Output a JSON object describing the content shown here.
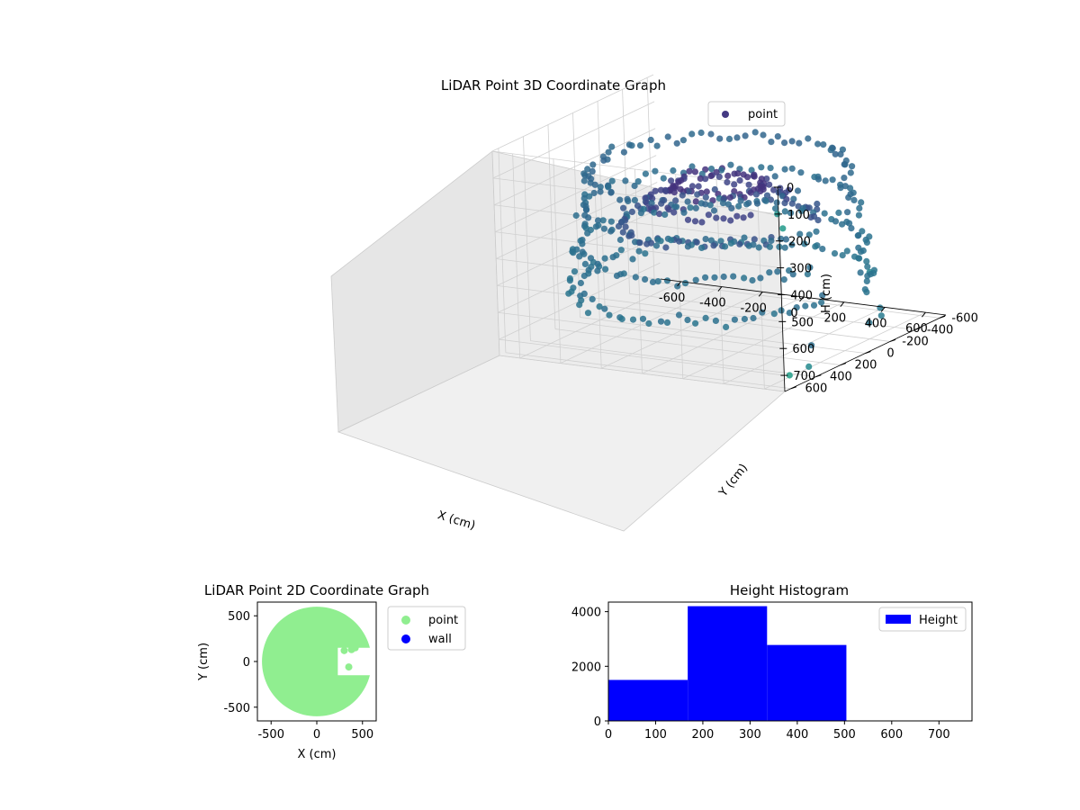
{
  "colors": {
    "point3d": "#443a83",
    "point2d": "#90ee90",
    "wall": "#0000ff",
    "hist": "#0000ff"
  },
  "chart_data": [
    {
      "type": "scatter",
      "projection": "3d",
      "title": "LiDAR Point 3D Coordinate Graph",
      "xlabel": "X (cm)",
      "ylabel": "Y (cm)",
      "zlabel": "H (cm)",
      "xlim": [
        -700,
        700
      ],
      "ylim": [
        -650,
        650
      ],
      "zlim": [
        0,
        760
      ],
      "z_inverted": true,
      "x_ticks": [
        -600,
        -400,
        -200,
        0,
        200,
        400,
        600
      ],
      "y_ticks": [
        -600,
        -400,
        -200,
        0,
        200,
        400,
        600
      ],
      "z_ticks": [
        0,
        100,
        200,
        300,
        400,
        500,
        600,
        700
      ],
      "colormap": "viridis",
      "legend": {
        "entries": [
          "point"
        ],
        "placement": "top-right"
      },
      "series": [
        {
          "name": "point",
          "description_free": true,
          "rings": [
            {
              "radius": 560,
              "h": 150,
              "count": 90
            },
            {
              "radius": 600,
              "h": 280,
              "count": 90
            },
            {
              "radius": 620,
              "h": 420,
              "count": 95
            },
            {
              "radius": 640,
              "h": 560,
              "count": 95
            },
            {
              "radius": 420,
              "h": 330,
              "count": 70
            },
            {
              "radius": 300,
              "h": 250,
              "count": 60
            },
            {
              "radius": 200,
              "h": 200,
              "count": 50
            }
          ],
          "outliers": [
            [
              650,
              580,
              120
            ],
            [
              700,
              620,
              160
            ],
            [
              720,
              640,
              700
            ],
            [
              680,
              420,
              720
            ],
            [
              560,
              200,
              700
            ],
            [
              600,
              -200,
              700
            ],
            [
              520,
              -420,
              700
            ],
            [
              500,
              -460,
              740
            ],
            [
              150,
              -560,
              720
            ],
            [
              -60,
              -600,
              690
            ],
            [
              300,
              -700,
              650
            ]
          ]
        }
      ]
    },
    {
      "type": "scatter",
      "title": "LiDAR Point 2D Coordinate Graph",
      "xlabel": "X (cm)",
      "ylabel": "Y (cm)",
      "xlim": [
        -650,
        650
      ],
      "ylim": [
        -650,
        650
      ],
      "x_ticks": [
        -500,
        0,
        500
      ],
      "y_ticks": [
        -500,
        0,
        500
      ],
      "legend": {
        "entries": [
          "point",
          "wall"
        ],
        "placement": "outside-right"
      },
      "series": [
        {
          "name": "point",
          "shape": "disc",
          "center": [
            0,
            0
          ],
          "radius": 600,
          "notch": {
            "from_x": 230,
            "y_range": [
              -150,
              150
            ]
          }
        },
        {
          "name": "wall",
          "points": []
        }
      ]
    },
    {
      "type": "bar",
      "subtype": "histogram",
      "title": "Height Histogram",
      "xlabel": "",
      "ylabel": "",
      "xlim": [
        0,
        770
      ],
      "ylim": [
        0,
        4350
      ],
      "x_ticks": [
        0,
        100,
        200,
        300,
        400,
        500,
        600,
        700
      ],
      "y_ticks": [
        0,
        2000,
        4000
      ],
      "legend": {
        "entries": [
          "Height"
        ],
        "placement": "top-right"
      },
      "bins": [
        {
          "x0": 0,
          "x1": 168,
          "count": 1500
        },
        {
          "x0": 168,
          "x1": 336,
          "count": 4200
        },
        {
          "x0": 336,
          "x1": 504,
          "count": 2780
        },
        {
          "x0": 504,
          "x1": 672,
          "count": 0
        }
      ]
    }
  ]
}
